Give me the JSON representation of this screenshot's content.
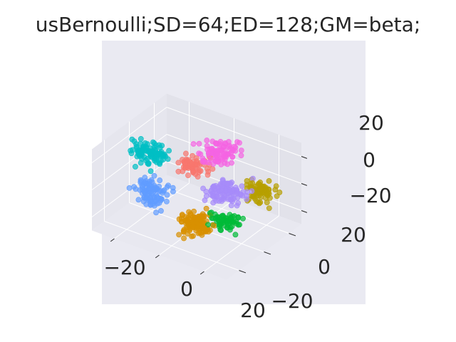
{
  "chart_data": {
    "type": "scatter",
    "projection": "3d",
    "title": "usBernoulli;SD=64;ED=128;GM=beta;",
    "xlabel": "",
    "ylabel": "",
    "zlabel": "",
    "x_ticks": [
      "−20",
      "0",
      "20"
    ],
    "y_ticks": [
      "−20",
      "0",
      "20"
    ],
    "z_ticks": [
      "−20",
      "0",
      "20"
    ],
    "xlim": [
      -30,
      30
    ],
    "ylim": [
      -30,
      30
    ],
    "zlim": [
      -30,
      30
    ],
    "grid": true,
    "legend": "none",
    "background": "#eaeaf2",
    "clusters": [
      {
        "color": "#f564e3",
        "center": [
          5,
          10,
          22
        ],
        "spread": 6,
        "count": 90
      },
      {
        "color": "#f8766d",
        "center": [
          -5,
          8,
          8
        ],
        "spread": 5,
        "count": 60
      },
      {
        "color": "#00bfc4",
        "center": [
          -22,
          2,
          10
        ],
        "spread": 6,
        "count": 100
      },
      {
        "color": "#619cff",
        "center": [
          -15,
          -8,
          -8
        ],
        "spread": 6,
        "count": 100
      },
      {
        "color": "#b79f00",
        "center": [
          22,
          12,
          2
        ],
        "spread": 5,
        "count": 80
      },
      {
        "color": "#a78bfa",
        "center": [
          12,
          2,
          2
        ],
        "spread": 6,
        "count": 110
      },
      {
        "color": "#00ba38",
        "center": [
          18,
          -10,
          -8
        ],
        "spread": 5,
        "count": 60
      },
      {
        "color": "#d89000",
        "center": [
          8,
          -15,
          -12
        ],
        "spread": 6,
        "count": 120
      }
    ]
  }
}
